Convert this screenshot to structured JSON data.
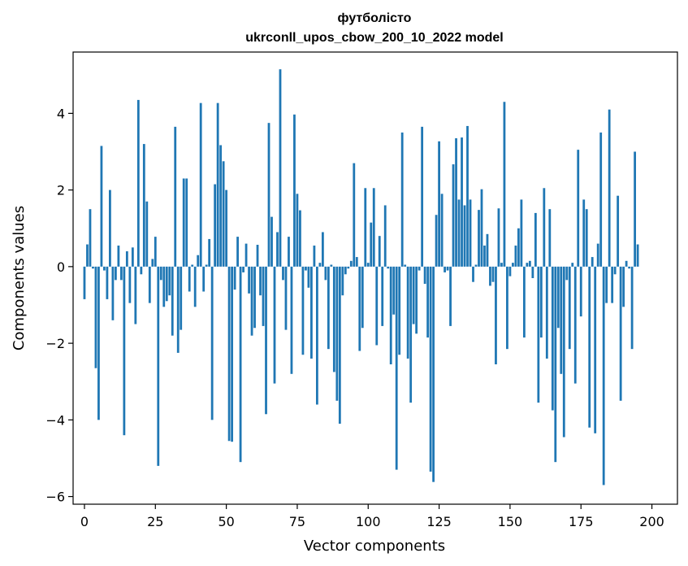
{
  "chart_data": {
    "type": "bar",
    "title_line1": "футболісто",
    "title_line2": "ukrconll_upos_cbow_200_10_2022 model",
    "xlabel": "Vector components",
    "ylabel": "Components values",
    "xlim": [
      -4,
      209
    ],
    "ylim": [
      -6.2,
      5.6
    ],
    "xticks": [
      0,
      25,
      50,
      75,
      100,
      125,
      150,
      175,
      200
    ],
    "yticks": [
      -6,
      -4,
      -2,
      0,
      2,
      4
    ],
    "ytick_labels": [
      "−6",
      "−4",
      "−2",
      "0",
      "2",
      "4"
    ],
    "grid": false,
    "bar_color": "#1f77b4",
    "values": [
      -0.85,
      0.58,
      1.5,
      -0.05,
      -2.65,
      -4.0,
      3.15,
      -0.1,
      -0.85,
      2.0,
      -1.4,
      -0.35,
      0.55,
      -0.35,
      -4.4,
      0.4,
      -0.95,
      0.5,
      -1.5,
      4.35,
      -0.2,
      3.2,
      1.7,
      -0.95,
      0.2,
      0.78,
      -5.2,
      -0.35,
      -1.05,
      -0.9,
      -0.75,
      -1.8,
      3.65,
      -2.25,
      -1.65,
      2.3,
      2.3,
      -0.65,
      0.05,
      -1.05,
      0.3,
      4.27,
      -0.65,
      0.05,
      0.72,
      -4.0,
      2.15,
      4.27,
      3.17,
      2.75,
      2.0,
      -4.55,
      -4.57,
      -0.6,
      0.78,
      -5.1,
      -0.15,
      0.6,
      -0.7,
      -1.8,
      -1.6,
      0.57,
      -0.75,
      -1.55,
      -3.85,
      3.75,
      1.3,
      -3.05,
      0.9,
      5.15,
      -0.35,
      -1.65,
      0.78,
      -2.8,
      3.97,
      1.9,
      1.47,
      -2.3,
      -0.1,
      -0.55,
      -2.4,
      0.55,
      -3.6,
      0.1,
      0.9,
      -0.35,
      -2.15,
      0.05,
      -2.75,
      -3.5,
      -4.1,
      -0.75,
      -0.2,
      -0.05,
      0.15,
      2.7,
      0.25,
      -2.2,
      -1.6,
      2.05,
      0.1,
      1.15,
      2.05,
      -2.05,
      0.8,
      -1.55,
      1.6,
      -0.05,
      -2.55,
      -1.25,
      -5.3,
      -2.3,
      3.5,
      0.05,
      -2.4,
      -3.55,
      -1.5,
      -1.75,
      -0.1,
      3.65,
      -0.45,
      -1.85,
      -5.35,
      -5.62,
      1.35,
      3.27,
      1.9,
      -0.15,
      -0.1,
      -1.55,
      2.67,
      3.35,
      1.75,
      3.37,
      1.6,
      3.67,
      1.75,
      -0.4,
      0.05,
      1.48,
      2.02,
      0.55,
      0.85,
      -0.5,
      -0.4,
      -2.55,
      1.52,
      0.1,
      4.3,
      -2.15,
      -0.25,
      0.1,
      0.55,
      1.0,
      1.75,
      -1.85,
      0.1,
      0.15,
      -0.3,
      1.4,
      -3.55,
      -1.85,
      2.05,
      -2.4,
      1.5,
      -3.75,
      -5.1,
      -1.6,
      -2.8,
      -4.45,
      -0.35,
      -2.15,
      0.1,
      -3.05,
      3.05,
      -1.3,
      1.75,
      1.5,
      -4.2,
      0.25,
      -4.35,
      0.6,
      3.5,
      -5.7,
      -0.95,
      4.1,
      -0.95,
      -0.2,
      1.85,
      -3.5,
      -1.05,
      0.15,
      -0.05,
      -2.15,
      3.0,
      0.58
    ]
  }
}
